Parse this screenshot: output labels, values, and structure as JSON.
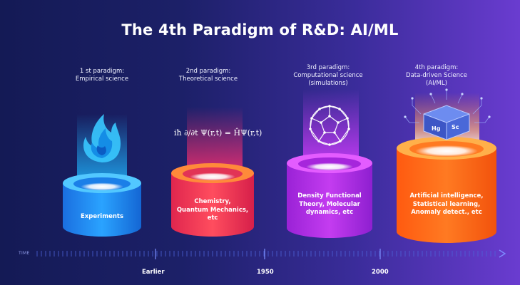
{
  "title": "The 4th Paradigm of R&D: AI/ML",
  "paradigms": [
    {
      "caption": [
        "1 st paradigm:",
        "Empirical science"
      ],
      "pillar_text": [
        "Experiments"
      ],
      "icon": "flame-icon",
      "color": "#1f8ff0"
    },
    {
      "caption": [
        "2nd paradigm:",
        "Theoretical science"
      ],
      "pillar_text": [
        "Chemistry,",
        "Quantum Mechanics,",
        "etc"
      ],
      "icon": "schrodinger-equation",
      "color": "#f03a5a"
    },
    {
      "caption": [
        "3rd paradigm:",
        "Computational science",
        "(simulations)"
      ],
      "pillar_text": [
        "Density Functional",
        "Theory, Molecular",
        "dynamics, etc"
      ],
      "icon": "fullerene-molecule-icon",
      "color": "#b52be0"
    },
    {
      "caption": [
        "4th paradigm:",
        "Data-driven Science",
        "(AI/ML)"
      ],
      "pillar_text": [
        "Artificial intelligence,",
        "Statistical learning,",
        "Anomaly detect., etc"
      ],
      "icon": "ai-cube-icon",
      "color": "#ff6a10"
    }
  ],
  "formula": "iħ ∂/∂t Ψ(r,t) = ĤΨ(r,t)",
  "cube_labels": [
    "Hg",
    "Sc"
  ],
  "timeline": {
    "axis_word": "TIME",
    "labels": [
      "Earlier",
      "1950",
      "2000"
    ]
  }
}
